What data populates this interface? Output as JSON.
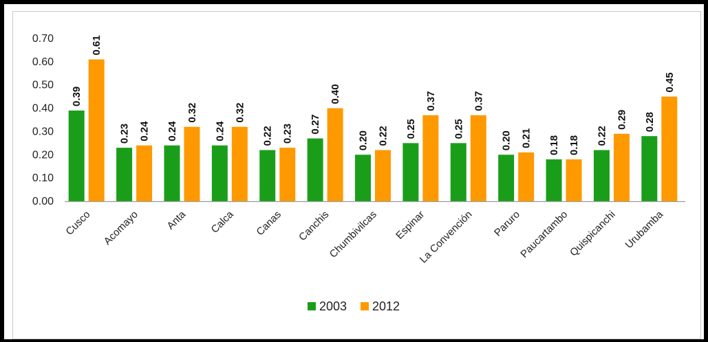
{
  "chart_data": {
    "type": "bar",
    "title": "",
    "xlabel": "",
    "ylabel": "",
    "ylim": [
      0,
      0.7
    ],
    "yticks": [
      "0.00",
      "0.10",
      "0.20",
      "0.30",
      "0.40",
      "0.50",
      "0.60",
      "0.70"
    ],
    "grid": false,
    "legend_position": "bottom",
    "categories": [
      "Cusco",
      "Acomayo",
      "Anta",
      "Calca",
      "Canas",
      "Canchis",
      "Chumbivilcas",
      "Espinar",
      "La Convención",
      "Paruro",
      "Paucartambo",
      "Quispicanchi",
      "Urubamba"
    ],
    "series": [
      {
        "name": "2003",
        "color": "#1a9e1a",
        "values": [
          0.39,
          0.23,
          0.24,
          0.24,
          0.22,
          0.27,
          0.2,
          0.25,
          0.25,
          0.2,
          0.18,
          0.22,
          0.28
        ],
        "labels": [
          "0.39",
          "0.23",
          "0.24",
          "0.24",
          "0.22",
          "0.27",
          "0.20",
          "0.25",
          "0.25",
          "0.20",
          "0.18",
          "0.22",
          "0.28"
        ]
      },
      {
        "name": "2012",
        "color": "#ff9900",
        "values": [
          0.61,
          0.24,
          0.32,
          0.32,
          0.23,
          0.4,
          0.22,
          0.37,
          0.37,
          0.21,
          0.18,
          0.29,
          0.45
        ],
        "labels": [
          "0.61",
          "0.24",
          "0.32",
          "0.32",
          "0.23",
          "0.40",
          "0.22",
          "0.37",
          "0.37",
          "0.21",
          "0.18",
          "0.29",
          "0.45"
        ]
      }
    ]
  }
}
